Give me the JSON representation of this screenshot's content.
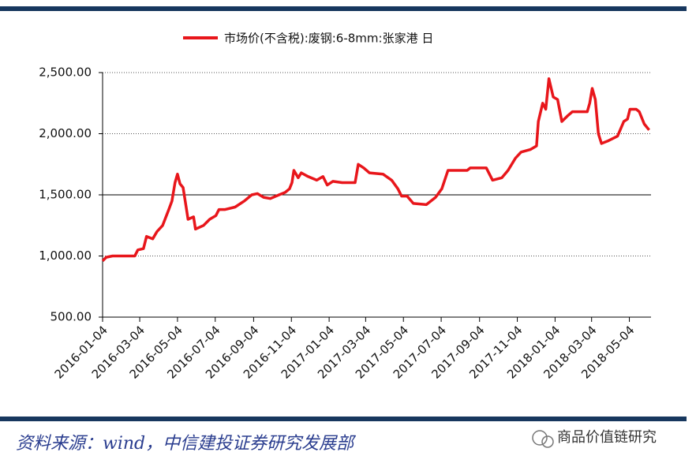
{
  "chart_data": {
    "type": "line",
    "series": [
      {
        "name": "市场价(不含税):废钢:6-8mm:张家港 日",
        "color": "#e8161b",
        "x": [
          "2016-01-04",
          "2016-01-10",
          "2016-01-20",
          "2016-02-25",
          "2016-03-01",
          "2016-03-10",
          "2016-03-15",
          "2016-03-25",
          "2016-04-01",
          "2016-04-10",
          "2016-04-20",
          "2016-04-25",
          "2016-04-30",
          "2016-05-04",
          "2016-05-08",
          "2016-05-13",
          "2016-05-18",
          "2016-05-21",
          "2016-05-30",
          "2016-06-02",
          "2016-06-15",
          "2016-06-25",
          "2016-07-05",
          "2016-07-10",
          "2016-07-20",
          "2016-08-05",
          "2016-08-20",
          "2016-09-01",
          "2016-09-10",
          "2016-09-20",
          "2016-10-01",
          "2016-10-15",
          "2016-10-25",
          "2016-11-01",
          "2016-11-05",
          "2016-11-08",
          "2016-11-15",
          "2016-11-20",
          "2016-12-01",
          "2016-12-15",
          "2016-12-25",
          "2017-01-01",
          "2017-01-10",
          "2017-01-25",
          "2017-02-15",
          "2017-02-20",
          "2017-03-01",
          "2017-03-10",
          "2017-04-01",
          "2017-04-15",
          "2017-04-25",
          "2017-05-01",
          "2017-05-10",
          "2017-05-20",
          "2017-06-10",
          "2017-06-25",
          "2017-07-05",
          "2017-07-15",
          "2017-08-15",
          "2017-08-20",
          "2017-09-15",
          "2017-09-25",
          "2017-10-10",
          "2017-10-20",
          "2017-11-01",
          "2017-11-10",
          "2017-11-25",
          "2017-12-05",
          "2017-12-08",
          "2017-12-15",
          "2017-12-20",
          "2017-12-25",
          "2018-01-01",
          "2018-01-08",
          "2018-01-15",
          "2018-01-25",
          "2018-02-01",
          "2018-02-25",
          "2018-03-01",
          "2018-03-05",
          "2018-03-10",
          "2018-03-15",
          "2018-03-20",
          "2018-03-30",
          "2018-04-15",
          "2018-04-25",
          "2018-05-01",
          "2018-05-05",
          "2018-05-15",
          "2018-05-20",
          "2018-05-28",
          "2018-06-05"
        ],
        "values": [
          960,
          990,
          1000,
          1000,
          1050,
          1060,
          1160,
          1140,
          1200,
          1250,
          1380,
          1450,
          1600,
          1670,
          1590,
          1560,
          1400,
          1300,
          1320,
          1220,
          1250,
          1300,
          1330,
          1380,
          1380,
          1400,
          1450,
          1500,
          1510,
          1480,
          1470,
          1500,
          1520,
          1550,
          1600,
          1700,
          1640,
          1680,
          1650,
          1620,
          1650,
          1580,
          1610,
          1600,
          1600,
          1750,
          1720,
          1680,
          1670,
          1620,
          1550,
          1490,
          1490,
          1430,
          1420,
          1480,
          1550,
          1700,
          1700,
          1720,
          1720,
          1620,
          1640,
          1700,
          1800,
          1850,
          1870,
          1900,
          2100,
          2250,
          2200,
          2450,
          2300,
          2280,
          2100,
          2150,
          2180,
          2180,
          2250,
          2370,
          2280,
          2000,
          1920,
          1940,
          1980,
          2100,
          2120,
          2200,
          2200,
          2180,
          2080,
          2030
        ]
      }
    ],
    "xlim": [
      "2016-01-04",
      "2018-06-08"
    ],
    "xticks": [
      "2016-01-04",
      "2016-03-04",
      "2016-05-04",
      "2016-07-04",
      "2016-09-04",
      "2016-11-04",
      "2017-01-04",
      "2017-03-04",
      "2017-05-04",
      "2017-07-04",
      "2017-09-04",
      "2017-11-04",
      "2018-01-04",
      "2018-03-04",
      "2018-05-04"
    ],
    "ylim": [
      500,
      2500
    ],
    "yticks": [
      {
        "value": 500,
        "label": "500.00"
      },
      {
        "value": 1000,
        "label": "1,000.00"
      },
      {
        "value": 1500,
        "label": "1,500.00"
      },
      {
        "value": 2000,
        "label": "2,000.00"
      },
      {
        "value": 2500,
        "label": "2,500.00"
      }
    ],
    "grid": true,
    "legend": "top",
    "source": "资料来源：wind，中信建投证券研究发展部",
    "watermark": "商品价值链研究"
  }
}
